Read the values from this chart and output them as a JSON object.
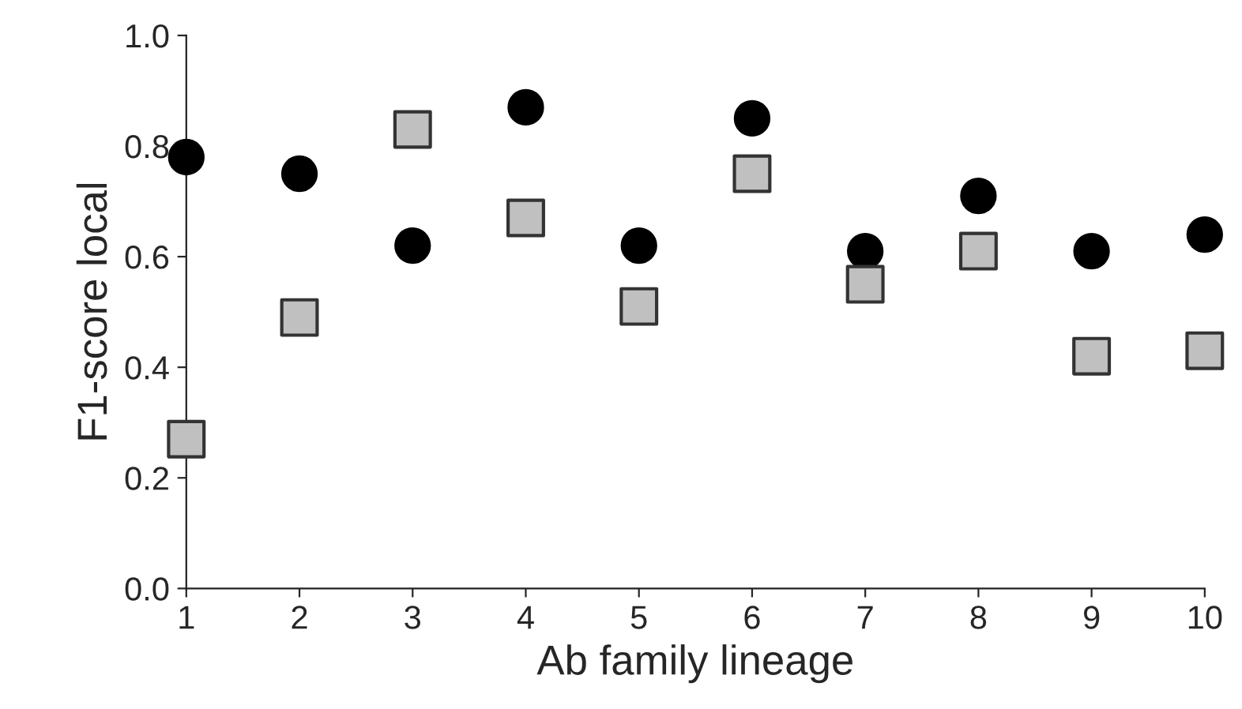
{
  "chart_data": {
    "type": "scatter",
    "xlabel": "Ab family lineage",
    "ylabel": "F1-score local",
    "x": [
      1,
      2,
      3,
      4,
      5,
      6,
      7,
      8,
      9,
      10
    ],
    "series": [
      {
        "color": "#000000",
        "marker": "circle",
        "values": [
          0.78,
          0.75,
          0.62,
          0.87,
          0.62,
          0.85,
          0.61,
          0.71,
          0.61,
          0.64
        ]
      },
      {
        "color": "#c0c0c0",
        "marker": "square",
        "values": [
          0.27,
          0.49,
          0.83,
          0.67,
          0.51,
          0.75,
          0.55,
          0.61,
          0.42,
          0.43
        ]
      }
    ],
    "xlim": [
      1,
      10
    ],
    "xticks": [
      1,
      2,
      3,
      4,
      5,
      6,
      7,
      8,
      9,
      10
    ],
    "ylim": [
      0,
      1
    ],
    "yticks": [
      {
        "value": 0,
        "label": "0.0"
      },
      {
        "value": 0.2,
        "label": "0.2"
      },
      {
        "value": 0.4,
        "label": "0.4"
      },
      {
        "value": 0.6,
        "label": "0.6"
      },
      {
        "value": 0.8,
        "label": "0.8"
      },
      {
        "value": 1,
        "label": "1.0"
      }
    ],
    "grid": false,
    "legend": false
  }
}
